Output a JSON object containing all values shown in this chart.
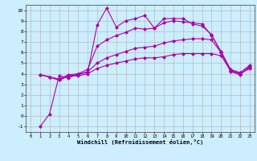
{
  "xlabel": "Windchill (Refroidissement éolien,°C)",
  "background_color": "#cceeff",
  "grid_color": "#b0b0b0",
  "line_color": "#aa00aa",
  "xlim": [
    -0.5,
    23.5
  ],
  "ylim": [
    -1.5,
    10.5
  ],
  "xticks": [
    0,
    1,
    2,
    3,
    4,
    5,
    6,
    7,
    8,
    9,
    10,
    11,
    12,
    13,
    14,
    15,
    16,
    17,
    18,
    19,
    20,
    21,
    22,
    23
  ],
  "yticks": [
    -1,
    0,
    1,
    2,
    3,
    4,
    5,
    6,
    7,
    8,
    9,
    10
  ],
  "lines": [
    {
      "x": [
        1,
        2,
        3,
        4,
        5,
        6,
        7,
        8,
        9,
        10,
        11,
        12,
        13,
        14,
        15,
        16,
        17,
        18,
        19,
        20,
        21,
        22,
        23
      ],
      "y": [
        -1.0,
        0.2,
        3.8,
        3.6,
        4.0,
        4.1,
        8.6,
        10.2,
        8.4,
        9.0,
        9.2,
        9.5,
        8.3,
        9.2,
        9.2,
        9.2,
        8.7,
        8.5,
        7.7,
        6.0,
        4.2,
        3.9,
        4.7
      ]
    },
    {
      "x": [
        1,
        2,
        3,
        4,
        5,
        6,
        7,
        8,
        9,
        10,
        11,
        12,
        13,
        14,
        15,
        16,
        17,
        18,
        19,
        20,
        21,
        22,
        23
      ],
      "y": [
        3.9,
        3.7,
        3.5,
        3.9,
        4.0,
        4.4,
        6.6,
        7.2,
        7.6,
        7.9,
        8.3,
        8.2,
        8.3,
        8.8,
        9.0,
        8.9,
        8.8,
        8.7,
        7.6,
        6.1,
        4.4,
        4.1,
        4.8
      ]
    },
    {
      "x": [
        1,
        2,
        3,
        4,
        5,
        6,
        7,
        8,
        9,
        10,
        11,
        12,
        13,
        14,
        15,
        16,
        17,
        18,
        19,
        20,
        21,
        22,
        23
      ],
      "y": [
        3.9,
        3.7,
        3.4,
        3.8,
        3.9,
        4.2,
        5.0,
        5.5,
        5.8,
        6.1,
        6.4,
        6.5,
        6.6,
        6.9,
        7.1,
        7.2,
        7.3,
        7.3,
        7.2,
        6.0,
        4.3,
        4.0,
        4.6
      ]
    },
    {
      "x": [
        1,
        2,
        3,
        4,
        5,
        6,
        7,
        8,
        9,
        10,
        11,
        12,
        13,
        14,
        15,
        16,
        17,
        18,
        19,
        20,
        21,
        22,
        23
      ],
      "y": [
        3.9,
        3.7,
        3.4,
        3.8,
        3.8,
        4.0,
        4.5,
        4.8,
        5.0,
        5.2,
        5.4,
        5.5,
        5.5,
        5.6,
        5.8,
        5.9,
        5.9,
        5.9,
        5.9,
        5.7,
        4.3,
        4.0,
        4.5
      ]
    }
  ]
}
